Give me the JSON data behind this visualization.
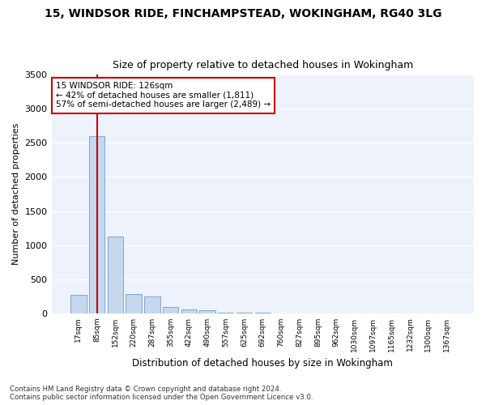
{
  "title_line1": "15, WINDSOR RIDE, FINCHAMPSTEAD, WOKINGHAM, RG40 3LG",
  "title_line2": "Size of property relative to detached houses in Wokingham",
  "xlabel": "Distribution of detached houses by size in Wokingham",
  "ylabel": "Number of detached properties",
  "footnote": "Contains HM Land Registry data © Crown copyright and database right 2024.\nContains public sector information licensed under the Open Government Licence v3.0.",
  "annotation_title": "15 WINDSOR RIDE: 126sqm",
  "annotation_line2": "← 42% of detached houses are smaller (1,811)",
  "annotation_line3": "57% of semi-detached houses are larger (2,489) →",
  "bar_color": "#c5d8ee",
  "bar_edge_color": "#5b8ec4",
  "vline_color": "#cc0000",
  "background_color": "#eef2fa",
  "grid_color": "#ffffff",
  "categories": [
    "17sqm",
    "85sqm",
    "152sqm",
    "220sqm",
    "287sqm",
    "355sqm",
    "422sqm",
    "490sqm",
    "557sqm",
    "625sqm",
    "692sqm",
    "760sqm",
    "827sqm",
    "895sqm",
    "962sqm",
    "1030sqm",
    "1097sqm",
    "1165sqm",
    "1232sqm",
    "1300sqm",
    "1367sqm"
  ],
  "values": [
    270,
    2600,
    1130,
    285,
    250,
    95,
    60,
    40,
    10,
    5,
    3,
    2,
    0,
    0,
    0,
    0,
    0,
    0,
    0,
    0,
    0
  ],
  "ylim": [
    0,
    3500
  ],
  "yticks": [
    0,
    500,
    1000,
    1500,
    2000,
    2500,
    3000,
    3500
  ],
  "vline_x": 1,
  "figsize": [
    6.0,
    5.0
  ],
  "dpi": 100
}
